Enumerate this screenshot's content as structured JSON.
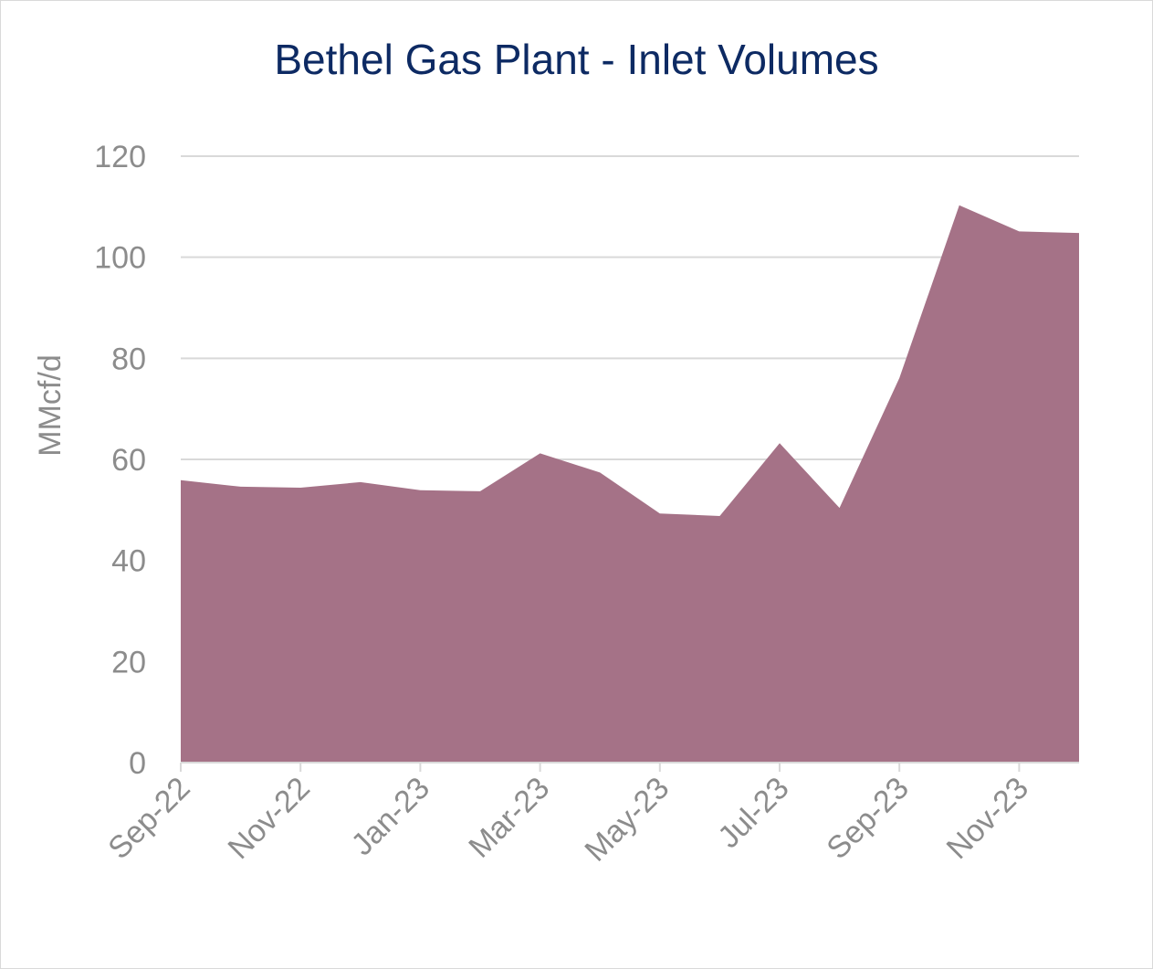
{
  "chart_data": {
    "type": "area",
    "title": "Bethel Gas Plant - Inlet Volumes",
    "xlabel": "",
    "ylabel": "MMcf/d",
    "ylim": [
      0,
      120
    ],
    "y_ticks": [
      0,
      20,
      40,
      60,
      80,
      100,
      120
    ],
    "x_tick_labels": [
      "Sep-22",
      "Nov-22",
      "Jan-23",
      "Mar-23",
      "May-23",
      "Jul-23",
      "Sep-23",
      "Nov-23"
    ],
    "grid": "horizontal",
    "legend": "none",
    "series": [
      {
        "color": "#a57287",
        "points": [
          {
            "x": "Sep-22",
            "y": 55.9
          },
          {
            "x": "Oct-22",
            "y": 54.6
          },
          {
            "x": "Nov-22",
            "y": 54.4
          },
          {
            "x": "Dec-22",
            "y": 55.5
          },
          {
            "x": "Jan-23",
            "y": 53.9
          },
          {
            "x": "Feb-23",
            "y": 53.7
          },
          {
            "x": "Mar-23",
            "y": 61.2
          },
          {
            "x": "Apr-23",
            "y": 57.4
          },
          {
            "x": "May-23",
            "y": 49.3
          },
          {
            "x": "Jun-23",
            "y": 48.8
          },
          {
            "x": "Jul-23",
            "y": 63.2
          },
          {
            "x": "Aug-23",
            "y": 50.4
          },
          {
            "x": "Sep-23",
            "y": 76.1
          },
          {
            "x": "Oct-23",
            "y": 110.3
          },
          {
            "x": "Nov-23",
            "y": 105.1
          },
          {
            "x": "Dec-23",
            "y": 104.8
          }
        ]
      }
    ]
  }
}
